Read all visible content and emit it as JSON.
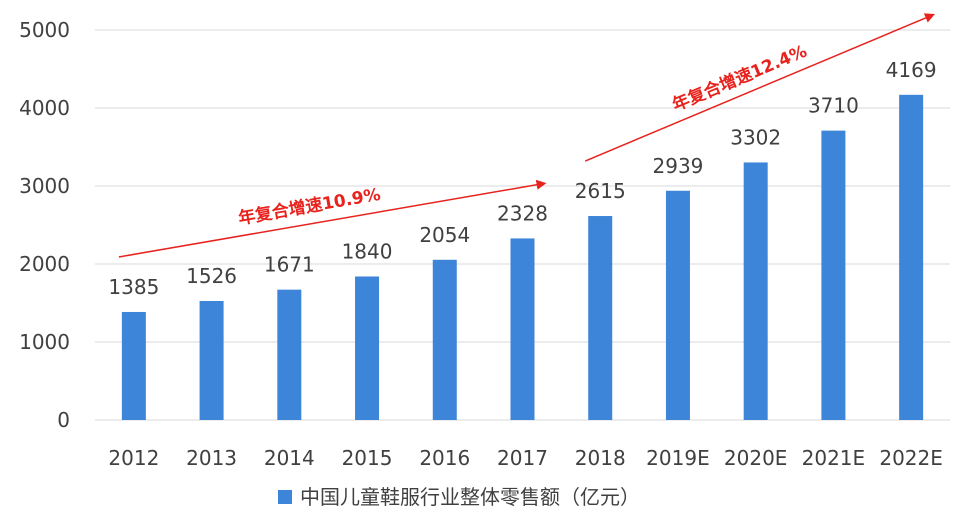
{
  "chart_data": {
    "type": "bar",
    "categories": [
      "2012",
      "2013",
      "2014",
      "2015",
      "2016",
      "2017",
      "2018",
      "2019E",
      "2020E",
      "2021E",
      "2022E"
    ],
    "series": [
      {
        "name": "中国儿童鞋服行业整体零售额（亿元）",
        "values": [
          1385,
          1526,
          1671,
          1840,
          2054,
          2328,
          2615,
          2939,
          3302,
          3710,
          4169
        ]
      }
    ],
    "yticks": [
      "0",
      "1000",
      "2000",
      "3000",
      "4000",
      "5000"
    ],
    "ylim": [
      0,
      5000
    ],
    "grid": true,
    "legend": "bottom",
    "bar_color": "#3d85d8",
    "annotations": [
      {
        "text": "年复合增速10.9%",
        "from": "2012",
        "to": "2017",
        "color": "#e8221d"
      },
      {
        "text": "年复合增速12.4%",
        "from": "2018",
        "to": "2022E",
        "color": "#e8221d"
      }
    ]
  }
}
